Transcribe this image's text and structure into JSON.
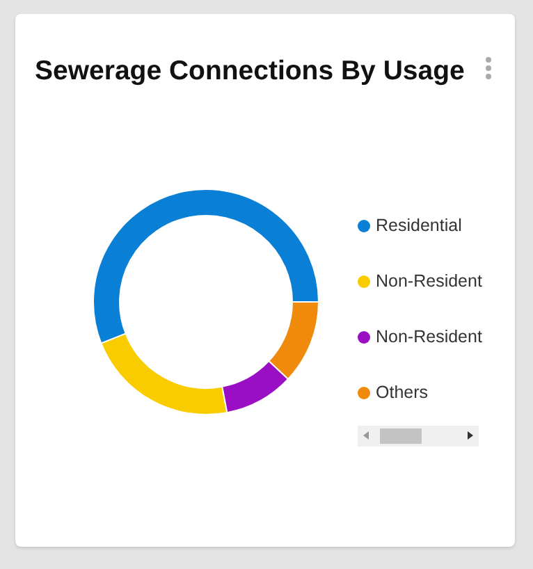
{
  "chart_data": {
    "type": "donut",
    "title": "Sewerage Connections By Usage",
    "categories": [
      "Residential",
      "Non-Resident",
      "Non-Resident",
      "Others"
    ],
    "values": [
      56,
      22,
      10,
      12
    ],
    "colors": [
      "#0a7fd6",
      "#f9cc00",
      "#9b0fc4",
      "#f08a0c"
    ],
    "legend": "right"
  }
}
